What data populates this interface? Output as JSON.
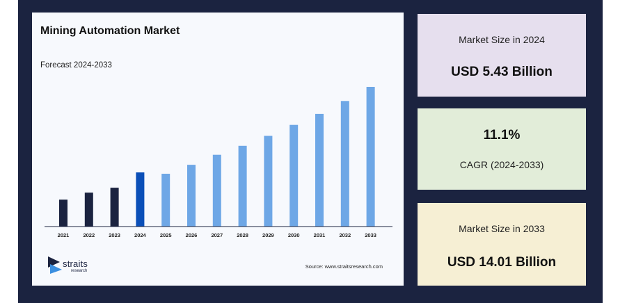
{
  "chart_data": {
    "type": "bar",
    "title": "Mining Automation Market",
    "subtitle": "Forecast 2024-2033",
    "categories": [
      "2021",
      "2022",
      "2023",
      "2024",
      "2025",
      "2026",
      "2027",
      "2028",
      "2029",
      "2030",
      "2031",
      "2032",
      "2033"
    ],
    "values": [
      2.7,
      3.4,
      3.9,
      5.43,
      5.3,
      6.2,
      7.2,
      8.1,
      9.1,
      10.2,
      11.3,
      12.6,
      14.01
    ],
    "ylim": [
      0,
      14.5
    ],
    "grid": false,
    "colors": {
      "historical": "#1b2340",
      "base_year": "#0b4fb8",
      "forecast": "#6ea7e6"
    }
  },
  "source": "Source: www.straitsresearch.com",
  "logo": {
    "word": "straits",
    "sub": "research"
  },
  "stats": {
    "market_2024": {
      "label": "Market Size in 2024",
      "value": "USD 5.43 Billion"
    },
    "cagr": {
      "value": "11.1%",
      "label": "CAGR (2024-2033)"
    },
    "market_2033": {
      "label": "Market Size in 2033",
      "value": "USD 14.01 Billion"
    }
  }
}
